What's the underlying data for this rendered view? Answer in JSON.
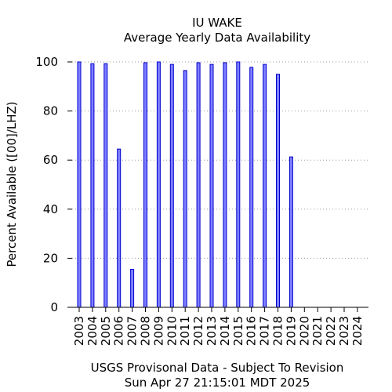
{
  "chart_data": {
    "type": "bar",
    "title": "IU WAKE",
    "subtitle": "Average Yearly Data Availability",
    "ylabel": "Percent Available ([00]/LHZ)",
    "xlabel": "",
    "ylim": [
      0,
      100
    ],
    "yticks": [
      "0",
      "20",
      "40",
      "60",
      "80",
      "100"
    ],
    "grid": true,
    "categories": [
      "2003",
      "2004",
      "2005",
      "2006",
      "2007",
      "2008",
      "2009",
      "2010",
      "2011",
      "2012",
      "2013",
      "2014",
      "2015",
      "2016",
      "2017",
      "2018",
      "2019",
      "2020",
      "2021",
      "2022",
      "2023",
      "2024"
    ],
    "values": [
      100,
      99.3,
      99.3,
      64.5,
      15.5,
      99.7,
      100,
      99,
      96.5,
      99.7,
      99,
      99.7,
      100,
      97.8,
      99,
      95,
      61.3,
      0,
      0,
      0,
      0,
      0
    ],
    "colors": {
      "bar_fill": "#7f7fff",
      "bar_stroke": "#0000cc"
    }
  },
  "footer": {
    "line1": "USGS Provisonal Data - Subject To Revision",
    "line2": "Sun Apr 27 21:15:01 MDT 2025"
  }
}
